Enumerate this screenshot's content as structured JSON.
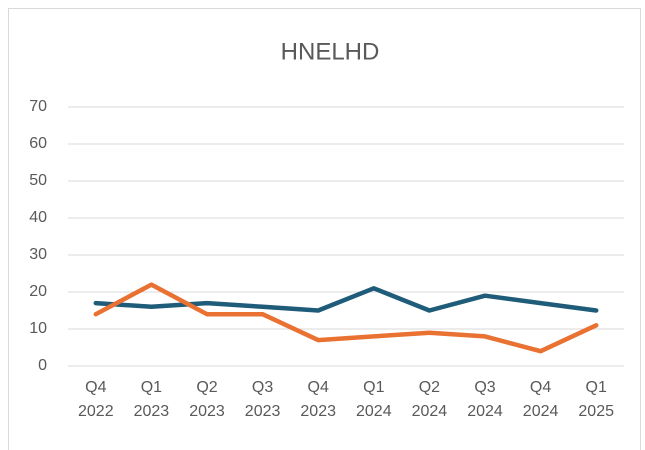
{
  "chart_data": {
    "type": "line",
    "title": "HNELHD",
    "categories": [
      "Q4 2022",
      "Q1 2023",
      "Q2 2023",
      "Q3 2023",
      "Q4 2023",
      "Q1 2024",
      "Q2 2024",
      "Q3 2024",
      "Q4 2024",
      "Q1 2025"
    ],
    "series": [
      {
        "color": "#1f5c7a",
        "values": [
          17,
          16,
          17,
          16,
          15,
          21,
          15,
          19,
          17,
          15
        ]
      },
      {
        "color": "#e97132",
        "values": [
          14,
          22,
          14,
          14,
          7,
          8,
          9,
          8,
          4,
          11
        ]
      }
    ],
    "ylim": [
      0,
      70
    ],
    "yticks": [
      0,
      10,
      20,
      30,
      40,
      50,
      60,
      70
    ],
    "grid": true
  }
}
